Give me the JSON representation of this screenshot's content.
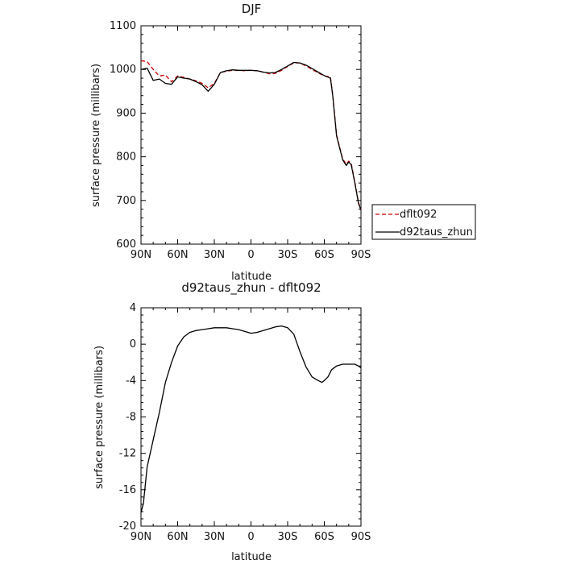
{
  "chart_data": [
    {
      "type": "line",
      "title": "DJF",
      "xlabel": "latitude",
      "ylabel": "surface pressure (millibars)",
      "xlim": [
        90,
        -90
      ],
      "ylim": [
        600,
        1100
      ],
      "xticks": [
        90,
        60,
        30,
        0,
        -30,
        -60,
        -90
      ],
      "xtick_labels": [
        "90N",
        "60N",
        "30N",
        "0",
        "30S",
        "60S",
        "90S"
      ],
      "yticks": [
        600,
        700,
        800,
        900,
        1000,
        1100
      ],
      "ytick_labels": [
        "600",
        "700",
        "800",
        "900",
        "1000",
        "1100"
      ],
      "legend_position": "right, outside plot",
      "series": [
        {
          "name": "dflt092",
          "color": "#cc0000",
          "dash": "dashed",
          "x": [
            90,
            85,
            80,
            75,
            70,
            65,
            60,
            55,
            50,
            45,
            40,
            35,
            30,
            25,
            20,
            15,
            10,
            5,
            0,
            -5,
            -10,
            -15,
            -20,
            -25,
            -30,
            -35,
            -40,
            -45,
            -50,
            -55,
            -60,
            -65,
            -67,
            -70,
            -75,
            -78,
            -80,
            -82,
            -85,
            -88,
            -90
          ],
          "y": [
            1020,
            1018,
            1000,
            985,
            987,
            972,
            985,
            982,
            978,
            974,
            968,
            958,
            968,
            993,
            996,
            998,
            998,
            997,
            998,
            997,
            994,
            990,
            991,
            998,
            1007,
            1015,
            1015,
            1008,
            1000,
            992,
            985,
            983,
            940,
            850,
            795,
            783,
            790,
            785,
            742,
            695,
            680
          ]
        },
        {
          "name": "d92taus_zhun",
          "color": "#000000",
          "dash": "solid",
          "x": [
            90,
            85,
            80,
            75,
            70,
            65,
            60,
            55,
            50,
            45,
            40,
            35,
            30,
            25,
            20,
            15,
            10,
            5,
            0,
            -5,
            -10,
            -15,
            -20,
            -25,
            -30,
            -35,
            -40,
            -45,
            -50,
            -55,
            -60,
            -65,
            -67,
            -70,
            -75,
            -78,
            -80,
            -82,
            -85,
            -88,
            -90
          ],
          "y": [
            1000,
            1003,
            975,
            978,
            968,
            966,
            983,
            980,
            978,
            972,
            965,
            950,
            966,
            993,
            997,
            999,
            998,
            998,
            998,
            997,
            994,
            992,
            993,
            1000,
            1008,
            1016,
            1015,
            1010,
            1002,
            994,
            986,
            980,
            938,
            848,
            793,
            780,
            788,
            782,
            740,
            693,
            678
          ]
        }
      ]
    },
    {
      "type": "line",
      "title": "d92taus_zhun - dflt092",
      "xlabel": "latitude",
      "ylabel": "surface pressure (millibars)",
      "xlim": [
        90,
        -90
      ],
      "ylim": [
        -20,
        4
      ],
      "xticks": [
        90,
        60,
        30,
        0,
        -30,
        -60,
        -90
      ],
      "xtick_labels": [
        "90N",
        "60N",
        "30N",
        "0",
        "30S",
        "60S",
        "90S"
      ],
      "yticks": [
        -20,
        -16,
        -12,
        -8,
        -4,
        0,
        4
      ],
      "ytick_labels": [
        "-20",
        "-16",
        "-12",
        "-8",
        "-4",
        "0",
        "4"
      ],
      "series": [
        {
          "color": "#000000",
          "x": [
            90,
            88,
            85,
            80,
            75,
            70,
            65,
            60,
            55,
            50,
            45,
            40,
            35,
            30,
            25,
            20,
            15,
            10,
            5,
            0,
            -5,
            -10,
            -15,
            -20,
            -25,
            -30,
            -35,
            -40,
            -45,
            -50,
            -55,
            -58,
            -60,
            -63,
            -66,
            -70,
            -75,
            -80,
            -85,
            -88,
            -90
          ],
          "y": [
            -18.5,
            -17.5,
            -13.5,
            -10.5,
            -7.5,
            -4.2,
            -2,
            -0.2,
            0.8,
            1.3,
            1.5,
            1.6,
            1.7,
            1.8,
            1.8,
            1.8,
            1.7,
            1.6,
            1.4,
            1.2,
            1.3,
            1.5,
            1.7,
            1.9,
            2.0,
            1.8,
            1.1,
            -0.8,
            -2.5,
            -3.6,
            -4.0,
            -4.2,
            -4.0,
            -3.6,
            -2.8,
            -2.4,
            -2.2,
            -2.2,
            -2.2,
            -2.4,
            -2.6
          ]
        }
      ]
    }
  ]
}
